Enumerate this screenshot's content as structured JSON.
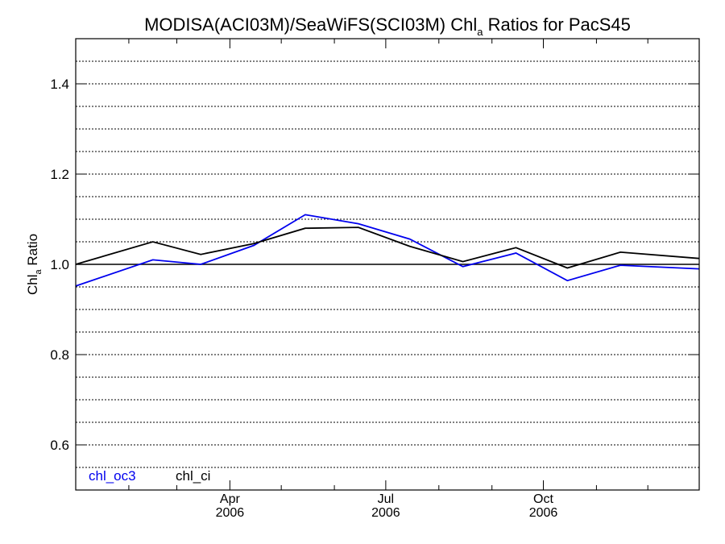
{
  "chart_data": {
    "type": "line",
    "title": {
      "main": "MODISA(ACI03M)/SeaWiFS(SCI03M)  Chl",
      "sub": "a",
      "rest": " Ratios for PacS45"
    },
    "ylabel": {
      "main": "Chl",
      "sub": "a",
      "rest": " Ratio"
    },
    "xlabel": "",
    "ylim": [
      0.5,
      1.5
    ],
    "yticks": [
      0.6,
      0.8,
      1.0,
      1.2,
      1.4
    ],
    "ytick_labels": [
      "0.6",
      "0.8",
      "1.0",
      "1.2",
      "1.4"
    ],
    "ygrid_step": 0.05,
    "grid": true,
    "x_domain": [
      "2006-01-01",
      "2006-12-31"
    ],
    "x_major_ticks": [
      {
        "date": "2006-04-01",
        "label1": "Apr",
        "label2": "2006"
      },
      {
        "date": "2006-07-01",
        "label1": "Jul",
        "label2": "2006"
      },
      {
        "date": "2006-10-01",
        "label1": "Oct",
        "label2": "2006"
      }
    ],
    "x_minor_tick_dates": [
      "2006-02-01",
      "2006-03-01",
      "2006-05-01",
      "2006-06-01",
      "2006-08-01",
      "2006-09-01",
      "2006-11-01",
      "2006-12-01"
    ],
    "reference_line": 1.0,
    "legend_placement": "bottom-left",
    "series": [
      {
        "name": "chl_oc3",
        "color": "#0000ee",
        "points": [
          {
            "date": "2006-01-01",
            "value": 0.952
          },
          {
            "date": "2006-02-15",
            "value": 1.01
          },
          {
            "date": "2006-03-15",
            "value": 1.0
          },
          {
            "date": "2006-04-15",
            "value": 1.042
          },
          {
            "date": "2006-05-15",
            "value": 1.11
          },
          {
            "date": "2006-06-15",
            "value": 1.09
          },
          {
            "date": "2006-07-15",
            "value": 1.056
          },
          {
            "date": "2006-08-15",
            "value": 0.995
          },
          {
            "date": "2006-09-15",
            "value": 1.025
          },
          {
            "date": "2006-10-15",
            "value": 0.964
          },
          {
            "date": "2006-11-15",
            "value": 0.998
          },
          {
            "date": "2006-12-31",
            "value": 0.99
          }
        ]
      },
      {
        "name": "chl_ci",
        "color": "#000000",
        "points": [
          {
            "date": "2006-01-01",
            "value": 1.0
          },
          {
            "date": "2006-02-15",
            "value": 1.05
          },
          {
            "date": "2006-03-15",
            "value": 1.022
          },
          {
            "date": "2006-04-15",
            "value": 1.046
          },
          {
            "date": "2006-05-15",
            "value": 1.08
          },
          {
            "date": "2006-06-15",
            "value": 1.082
          },
          {
            "date": "2006-07-15",
            "value": 1.04
          },
          {
            "date": "2006-08-15",
            "value": 1.006
          },
          {
            "date": "2006-09-15",
            "value": 1.037
          },
          {
            "date": "2006-10-15",
            "value": 0.992
          },
          {
            "date": "2006-11-15",
            "value": 1.027
          },
          {
            "date": "2006-12-31",
            "value": 1.013
          }
        ]
      }
    ]
  }
}
